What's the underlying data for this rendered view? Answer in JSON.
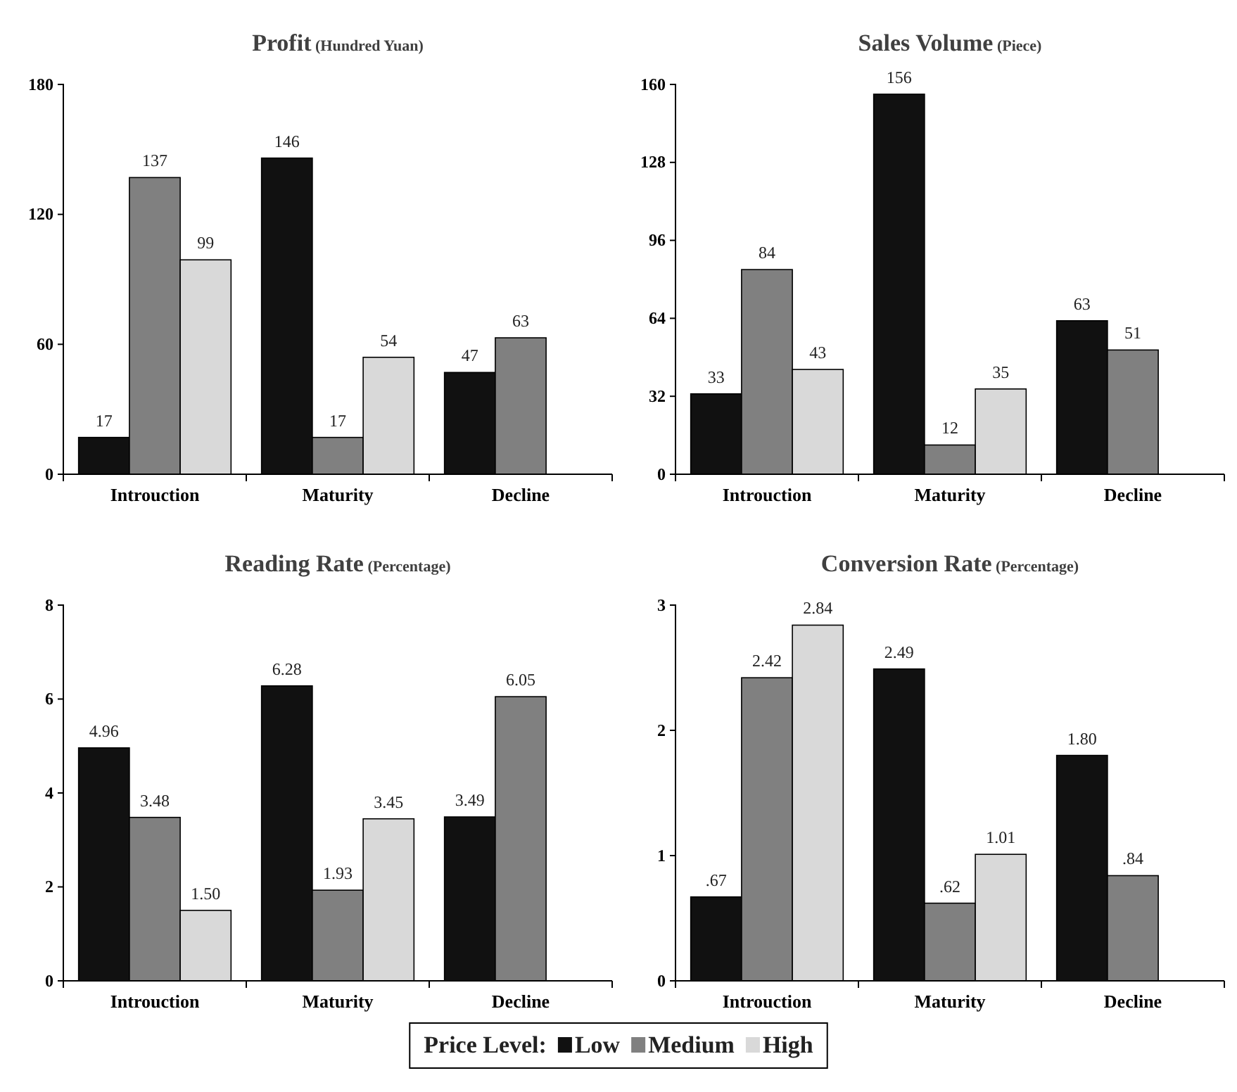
{
  "chart_data": [
    {
      "type": "bar",
      "title": "Profit (Hundred Yuan)",
      "categories": [
        "Introuction",
        "Maturity",
        "Decline"
      ],
      "ylim": [
        0,
        180
      ],
      "yticks": [
        0,
        60,
        120,
        180
      ],
      "grid": false,
      "legend": false,
      "series": [
        {
          "color": "#111111",
          "values": [
            17,
            146,
            47
          ],
          "value_labels": [
            "17",
            "146",
            "47"
          ]
        },
        {
          "color": "#808080",
          "values": [
            137,
            17,
            63
          ],
          "value_labels": [
            "137",
            "17",
            "63"
          ]
        },
        {
          "color": "#d9d9d9",
          "values": [
            99,
            54,
            null
          ],
          "value_labels": [
            "99",
            "54",
            null
          ]
        }
      ]
    },
    {
      "type": "bar",
      "title": "Sales Volume (Piece)",
      "categories": [
        "Introuction",
        "Maturity",
        "Decline"
      ],
      "ylim": [
        0,
        160
      ],
      "yticks": [
        0,
        32,
        64,
        96,
        128,
        160
      ],
      "grid": false,
      "legend": false,
      "series": [
        {
          "color": "#111111",
          "values": [
            33,
            156,
            63
          ],
          "value_labels": [
            "33",
            "156",
            "63"
          ]
        },
        {
          "color": "#808080",
          "values": [
            84,
            12,
            51
          ],
          "value_labels": [
            "84",
            "12",
            "51"
          ]
        },
        {
          "color": "#d9d9d9",
          "values": [
            43,
            35,
            null
          ],
          "value_labels": [
            "43",
            "35",
            null
          ]
        }
      ]
    },
    {
      "type": "bar",
      "title": "Reading Rate (Percentage)",
      "categories": [
        "Introuction",
        "Maturity",
        "Decline"
      ],
      "ylim": [
        0,
        8
      ],
      "yticks": [
        0,
        2,
        4,
        6,
        8
      ],
      "grid": false,
      "legend": false,
      "series": [
        {
          "color": "#111111",
          "values": [
            4.96,
            6.28,
            3.49
          ],
          "value_labels": [
            "4.96",
            "6.28",
            "3.49"
          ]
        },
        {
          "color": "#808080",
          "values": [
            3.48,
            1.93,
            6.05
          ],
          "value_labels": [
            "3.48",
            "1.93",
            "6.05"
          ]
        },
        {
          "color": "#d9d9d9",
          "values": [
            1.5,
            3.45,
            null
          ],
          "value_labels": [
            "1.50",
            "3.45",
            null
          ]
        }
      ]
    },
    {
      "type": "bar",
      "title": "Conversion Rate (Percentage)",
      "categories": [
        "Introuction",
        "Maturity",
        "Decline"
      ],
      "ylim": [
        0,
        3
      ],
      "yticks": [
        0,
        1,
        2,
        3
      ],
      "grid": false,
      "legend": "bottom",
      "legend_title": "Price Level:",
      "series": [
        {
          "name": "Low",
          "color": "#111111",
          "values": [
            0.67,
            2.49,
            1.8
          ],
          "value_labels": [
            ".67",
            "2.49",
            "1.80"
          ]
        },
        {
          "name": "Medium",
          "color": "#808080",
          "values": [
            2.42,
            0.62,
            0.84
          ],
          "value_labels": [
            "2.42",
            ".62",
            ".84"
          ]
        },
        {
          "name": "High",
          "color": "#d9d9d9",
          "values": [
            2.84,
            1.01,
            null
          ],
          "value_labels": [
            "2.84",
            "1.01",
            null
          ]
        }
      ]
    }
  ]
}
